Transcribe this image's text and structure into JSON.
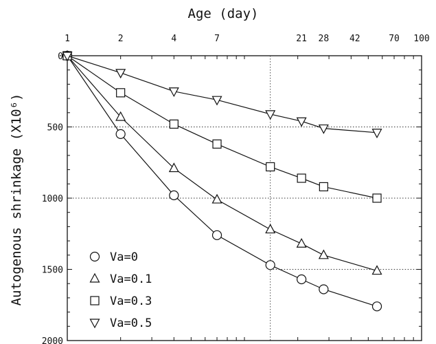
{
  "chart_data": {
    "type": "line",
    "xlabel": "Age (day)",
    "ylabel": "Autogenous shrinkage (X10⁶)",
    "x_scale": "log",
    "x_axis_position": "top",
    "xlim": [
      1,
      100
    ],
    "x_ticks": [
      1,
      2,
      4,
      7,
      21,
      28,
      42,
      70,
      100
    ],
    "x_tick_labels": [
      "1",
      "2",
      "4",
      "7",
      "21",
      "28",
      "42",
      "70",
      "100"
    ],
    "y_axis_inverted": true,
    "ylim": [
      0,
      2000
    ],
    "y_ticks": [
      0,
      500,
      1000,
      1500,
      2000
    ],
    "y_tick_labels": [
      "0",
      "500",
      "1000",
      "1500",
      "2000"
    ],
    "grid": "dotted at x=14, y=500, y=1000, y=1500",
    "legend_position": "bottom-left",
    "series": [
      {
        "name": "Va=0",
        "marker": "circle",
        "x": [
          1,
          2,
          4,
          7,
          14,
          21,
          28,
          56
        ],
        "y": [
          0,
          550,
          980,
          1260,
          1470,
          1570,
          1640,
          1760
        ]
      },
      {
        "name": "Va=0.1",
        "marker": "triangle-up",
        "x": [
          1,
          2,
          4,
          7,
          14,
          21,
          28,
          56
        ],
        "y": [
          0,
          430,
          790,
          1010,
          1220,
          1320,
          1400,
          1510
        ]
      },
      {
        "name": "Va=0.3",
        "marker": "square",
        "x": [
          1,
          2,
          4,
          7,
          14,
          21,
          28,
          56
        ],
        "y": [
          0,
          260,
          480,
          620,
          780,
          860,
          920,
          1000
        ]
      },
      {
        "name": "Va=0.5",
        "marker": "triangle-down",
        "x": [
          1,
          2,
          4,
          7,
          14,
          21,
          28,
          56
        ],
        "y": [
          0,
          120,
          250,
          310,
          410,
          460,
          510,
          540
        ]
      }
    ]
  }
}
